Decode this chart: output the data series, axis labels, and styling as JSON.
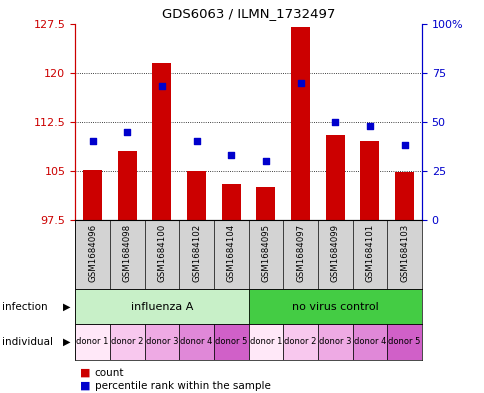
{
  "title": "GDS6063 / ILMN_1732497",
  "samples": [
    "GSM1684096",
    "GSM1684098",
    "GSM1684100",
    "GSM1684102",
    "GSM1684104",
    "GSM1684095",
    "GSM1684097",
    "GSM1684099",
    "GSM1684101",
    "GSM1684103"
  ],
  "bar_values": [
    105.2,
    108.0,
    121.5,
    105.0,
    103.0,
    102.5,
    127.0,
    110.5,
    109.5,
    104.8
  ],
  "dot_values": [
    40,
    45,
    68,
    40,
    33,
    30,
    70,
    50,
    48,
    38
  ],
  "ymin": 97.5,
  "ymax": 127.5,
  "yticks": [
    97.5,
    105.0,
    112.5,
    120.0,
    127.5
  ],
  "ytick_labels": [
    "97.5",
    "105",
    "112.5",
    "120",
    "127.5"
  ],
  "y2min": 0,
  "y2max": 100,
  "y2ticks": [
    0,
    25,
    50,
    75,
    100
  ],
  "y2tick_labels": [
    "0",
    "25",
    "50",
    "75",
    "100%"
  ],
  "bar_color": "#cc0000",
  "dot_color": "#0000cc",
  "inf_group1_color": "#c8f0c8",
  "inf_group2_color": "#44cc44",
  "inf_group1_label": "influenza A",
  "inf_group2_label": "no virus control",
  "individual_colors": [
    "#ffe8f8",
    "#f8c8ee",
    "#eeaae4",
    "#e088d8",
    "#d060c8",
    "#ffe8f8",
    "#f8c8ee",
    "#eeaae4",
    "#e088d8",
    "#d060c8"
  ],
  "individual_labels": [
    "donor 1",
    "donor 2",
    "donor 3",
    "donor 4",
    "donor 5",
    "donor 1",
    "donor 2",
    "donor 3",
    "donor 4",
    "donor 5"
  ],
  "axis_left_color": "#cc0000",
  "axis_right_color": "#0000cc",
  "legend_count_color": "#cc0000",
  "legend_dot_color": "#0000cc",
  "bg_color": "#ffffff",
  "fig_bg_color": "#ffffff"
}
